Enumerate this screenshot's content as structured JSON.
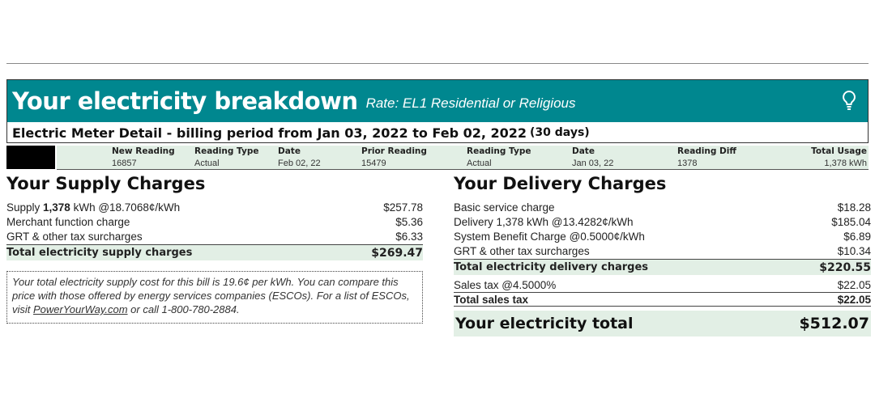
{
  "header": {
    "title": "Your electricity breakdown",
    "rate": "Rate: EL1 Residential or Religious",
    "icon": "lightbulb-icon",
    "accent": "#00878f"
  },
  "meter": {
    "title": "Electric Meter Detail -",
    "period": "billing period from Jan 03, 2022 to Feb 02, 2022",
    "days": "(30 days)",
    "headers": [
      "New Reading",
      "Reading Type",
      "Date",
      "Prior Reading",
      "Reading Type",
      "Date",
      "Reading Diff",
      "Total Usage"
    ],
    "values": [
      "16857",
      "Actual",
      "Feb 02, 22",
      "15479",
      "Actual",
      "Jan 03, 22",
      "1378",
      "1,378 kWh"
    ]
  },
  "supply": {
    "title": "Your Supply Charges",
    "line1": {
      "pre": "Supply ",
      "bold": "1,378",
      "post": " kWh @18.7068¢/kWh",
      "amount": "$257.78"
    },
    "items": [
      {
        "label": "Merchant function charge",
        "amount": "$5.36"
      },
      {
        "label": "GRT & other tax surcharges",
        "amount": "$6.33"
      }
    ],
    "total": {
      "label": "Total electricity supply charges",
      "amount": "$269.47"
    },
    "note": {
      "text1": "Your total electricity supply cost for this bill is 19.6¢ per kWh.  You can compare this price with those offered by energy  services companies (ESCOs).  For a list of ESCOs, visit ",
      "link": "PowerYourWay.com",
      "text2": " or call 1-800-780-2884."
    }
  },
  "delivery": {
    "title": "Your Delivery Charges",
    "items": [
      {
        "label": "Basic service charge",
        "amount": "$18.28"
      },
      {
        "label": "Delivery 1,378 kWh @13.4282¢/kWh",
        "amount": "$185.04"
      },
      {
        "label": "System Benefit Charge @0.5000¢/kWh",
        "amount": "$6.89"
      },
      {
        "label": "GRT & other tax surcharges",
        "amount": "$10.34"
      }
    ],
    "total": {
      "label": "Total electricity delivery charges",
      "amount": "$220.55"
    },
    "sales_tax": {
      "label": "Sales tax @4.5000%",
      "amount": "$22.05"
    },
    "total_sales_tax": {
      "label": "Total sales tax",
      "amount": "$22.05"
    },
    "grand": {
      "label": "Your electricity total",
      "amount": "$512.07"
    }
  }
}
